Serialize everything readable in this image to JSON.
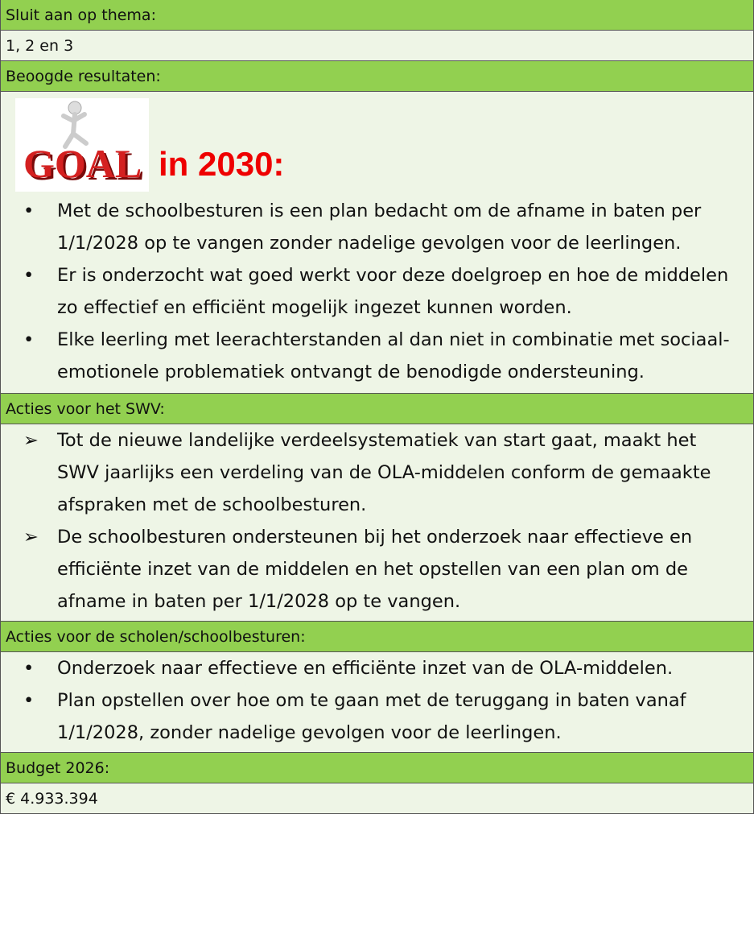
{
  "sections": [
    {
      "header": "Sluit aan op thema:",
      "content": "1, 2 en 3"
    },
    {
      "header": "Beoogde resultaten:",
      "image_text": "GOAL",
      "goal_heading": "in 2030:",
      "bullets": [
        "Met de schoolbesturen is een plan bedacht om de afname in baten per 1/1/2028 op te vangen zonder nadelige gevolgen voor de leerlingen.",
        "Er is onderzocht wat goed werkt voor deze doelgroep en hoe de middelen zo effectief en efficiënt mogelijk ingezet kunnen worden.",
        "Elke leerling met leerachterstanden al dan niet in combinatie met sociaal-emotionele problematiek ontvangt de benodigde ondersteuning."
      ]
    },
    {
      "header": "Acties voor het SWV:",
      "arrows": [
        "Tot de nieuwe landelijke verdeelsystematiek van start gaat, maakt het SWV jaarlijks een verdeling van de OLA-middelen conform de gemaakte afspraken met de schoolbesturen.",
        "De schoolbesturen ondersteunen bij het onderzoek naar effectieve en efficiënte inzet van de middelen en het opstellen van een plan om de afname in baten per 1/1/2028 op te vangen."
      ]
    },
    {
      "header": "Acties voor de scholen/schoolbesturen:",
      "bullets": [
        "Onderzoek naar effectieve en efficiënte inzet van de OLA-middelen.",
        "Plan opstellen over hoe om te gaan met de teruggang in baten vanaf 1/1/2028, zonder nadelige gevolgen voor de leerlingen."
      ]
    },
    {
      "header": "Budget 2026:",
      "content": "€ 4.933.394"
    }
  ]
}
